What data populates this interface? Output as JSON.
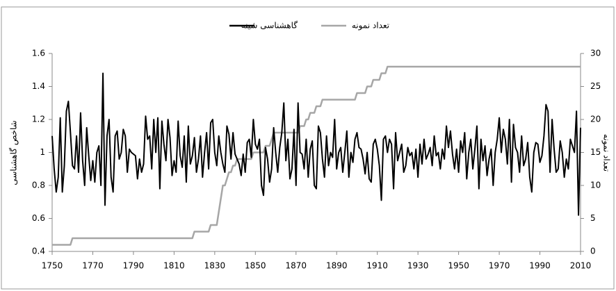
{
  "chart_data": {
    "type": "line",
    "legend_position": "top",
    "y_label": "شاخص گاهشناسی",
    "y2_label": "تعداد نمونه",
    "xlim": [
      1750,
      2010
    ],
    "xticks": [
      1750,
      1770,
      1790,
      1810,
      1830,
      1850,
      1870,
      1890,
      1910,
      1930,
      1950,
      1970,
      1990,
      2010
    ],
    "ylim": [
      0.4,
      1.6
    ],
    "yticks": [
      0.4,
      0.6,
      0.8,
      1,
      1.2,
      1.4,
      1.6
    ],
    "y2lim": [
      0,
      30
    ],
    "y2ticks": [
      0,
      5,
      10,
      15,
      20,
      25,
      30
    ],
    "x": [
      1750,
      1751,
      1752,
      1753,
      1754,
      1755,
      1756,
      1757,
      1758,
      1759,
      1760,
      1761,
      1762,
      1763,
      1764,
      1765,
      1766,
      1767,
      1768,
      1769,
      1770,
      1771,
      1772,
      1773,
      1774,
      1775,
      1776,
      1777,
      1778,
      1779,
      1780,
      1781,
      1782,
      1783,
      1784,
      1785,
      1786,
      1787,
      1788,
      1789,
      1790,
      1791,
      1792,
      1793,
      1794,
      1795,
      1796,
      1797,
      1798,
      1799,
      1800,
      1801,
      1802,
      1803,
      1804,
      1805,
      1806,
      1807,
      1808,
      1809,
      1810,
      1811,
      1812,
      1813,
      1814,
      1815,
      1816,
      1817,
      1818,
      1819,
      1820,
      1821,
      1822,
      1823,
      1824,
      1825,
      1826,
      1827,
      1828,
      1829,
      1830,
      1831,
      1832,
      1833,
      1834,
      1835,
      1836,
      1837,
      1838,
      1839,
      1840,
      1841,
      1842,
      1843,
      1844,
      1845,
      1846,
      1847,
      1848,
      1849,
      1850,
      1851,
      1852,
      1853,
      1854,
      1855,
      1856,
      1857,
      1858,
      1859,
      1860,
      1861,
      1862,
      1863,
      1864,
      1865,
      1866,
      1867,
      1868,
      1869,
      1870,
      1871,
      1872,
      1873,
      1874,
      1875,
      1876,
      1877,
      1878,
      1879,
      1880,
      1881,
      1882,
      1883,
      1884,
      1885,
      1886,
      1887,
      1888,
      1889,
      1890,
      1891,
      1892,
      1893,
      1894,
      1895,
      1896,
      1897,
      1898,
      1899,
      1900,
      1901,
      1902,
      1903,
      1904,
      1905,
      1906,
      1907,
      1908,
      1909,
      1910,
      1911,
      1912,
      1913,
      1914,
      1915,
      1916,
      1917,
      1918,
      1919,
      1920,
      1921,
      1922,
      1923,
      1924,
      1925,
      1926,
      1927,
      1928,
      1929,
      1930,
      1931,
      1932,
      1933,
      1934,
      1935,
      1936,
      1937,
      1938,
      1939,
      1940,
      1941,
      1942,
      1943,
      1944,
      1945,
      1946,
      1947,
      1948,
      1949,
      1950,
      1951,
      1952,
      1953,
      1954,
      1955,
      1956,
      1957,
      1958,
      1959,
      1960,
      1961,
      1962,
      1963,
      1964,
      1965,
      1966,
      1967,
      1968,
      1969,
      1970,
      1971,
      1972,
      1973,
      1974,
      1975,
      1976,
      1977,
      1978,
      1979,
      1980,
      1981,
      1982,
      1983,
      1984,
      1985,
      1986,
      1987,
      1988,
      1989,
      1990,
      1991,
      1992,
      1993,
      1994,
      1995,
      1996,
      1997,
      1998,
      1999,
      2000,
      2001,
      2002,
      2003,
      2004,
      2005,
      2006,
      2007,
      2008,
      2009,
      2010
    ],
    "series": [
      {
        "name": "گاهشناسی شینه",
        "color": "#000000",
        "axis": "y",
        "values": [
          1.1,
          0.9,
          0.76,
          0.85,
          1.21,
          0.76,
          0.92,
          1.25,
          1.31,
          1.12,
          0.92,
          0.9,
          1.1,
          0.88,
          1.24,
          0.95,
          0.8,
          1.15,
          0.98,
          0.83,
          0.95,
          0.82,
          1.0,
          1.04,
          0.8,
          1.48,
          0.68,
          1.1,
          1.2,
          0.85,
          0.76,
          1.1,
          1.13,
          0.96,
          1.0,
          1.14,
          1.1,
          0.88,
          1.02,
          1.0,
          0.99,
          0.98,
          0.84,
          0.96,
          0.88,
          0.93,
          1.22,
          1.08,
          1.1,
          0.9,
          1.2,
          1.0,
          1.21,
          0.78,
          1.19,
          1.05,
          0.95,
          1.2,
          1.09,
          0.86,
          0.95,
          0.88,
          1.19,
          0.98,
          0.91,
          1.1,
          0.82,
          1.16,
          0.93,
          0.98,
          1.09,
          0.88,
          0.96,
          1.1,
          0.85,
          1.0,
          1.12,
          0.9,
          1.18,
          1.2,
          1.0,
          0.92,
          1.1,
          1.0,
          0.93,
          0.88,
          1.16,
          1.11,
          0.96,
          1.12,
          0.99,
          0.96,
          0.93,
          0.86,
          0.99,
          0.88,
          1.06,
          1.08,
          0.97,
          1.2,
          1.05,
          1.02,
          1.08,
          0.8,
          0.74,
          1.03,
          0.96,
          0.82,
          0.9,
          1.15,
          1.0,
          0.88,
          1.03,
          1.12,
          1.3,
          0.95,
          1.08,
          0.84,
          0.9,
          1.14,
          0.8,
          1.3,
          1.0,
          0.99,
          0.9,
          1.08,
          0.85,
          1.02,
          1.07,
          0.8,
          0.78,
          1.16,
          1.12,
          0.96,
          0.85,
          1.1,
          0.92,
          1.0,
          0.97,
          1.2,
          0.9,
          1.0,
          1.03,
          0.88,
          1.0,
          1.13,
          0.85,
          1.0,
          0.94,
          1.08,
          1.12,
          1.03,
          1.02,
          0.96,
          0.87,
          1.0,
          0.84,
          0.82,
          1.05,
          1.08,
          1.02,
          0.92,
          0.71,
          1.08,
          1.1,
          1.0,
          1.08,
          1.05,
          0.78,
          1.12,
          0.95,
          1.0,
          1.05,
          0.88,
          0.92,
          1.03,
          0.98,
          1.0,
          0.9,
          1.02,
          0.85,
          1.05,
          0.93,
          1.08,
          0.96,
          0.99,
          1.03,
          0.92,
          1.1,
          0.98,
          1.0,
          0.9,
          1.02,
          0.96,
          1.16,
          1.03,
          1.13,
          0.99,
          0.9,
          1.02,
          0.88,
          1.07,
          1.0,
          1.12,
          0.84,
          1.0,
          1.08,
          0.9,
          1.02,
          1.16,
          0.78,
          1.08,
          0.95,
          1.04,
          0.86,
          0.96,
          1.02,
          0.8,
          1.0,
          1.08,
          1.21,
          1.0,
          1.14,
          1.08,
          0.93,
          1.2,
          0.82,
          1.17,
          1.03,
          1.0,
          0.88,
          1.1,
          0.92,
          0.96,
          1.06,
          0.85,
          0.76,
          1.0,
          1.06,
          1.05,
          0.94,
          0.98,
          1.1,
          1.29,
          1.25,
          0.88,
          1.2,
          1.02,
          0.88,
          0.9,
          1.07,
          1.0,
          0.85,
          0.96,
          0.9,
          1.08,
          1.04,
          1.0,
          1.25,
          0.62,
          1.15
        ]
      },
      {
        "name": "تعداد نمونه",
        "color": "#a6a6a6",
        "axis": "y2",
        "values": [
          1,
          1,
          1,
          1,
          1,
          1,
          1,
          1,
          1,
          1,
          2,
          2,
          2,
          2,
          2,
          2,
          2,
          2,
          2,
          2,
          2,
          2,
          2,
          2,
          2,
          2,
          2,
          2,
          2,
          2,
          2,
          2,
          2,
          2,
          2,
          2,
          2,
          2,
          2,
          2,
          2,
          2,
          2,
          2,
          2,
          2,
          2,
          2,
          2,
          2,
          2,
          2,
          2,
          2,
          2,
          2,
          2,
          2,
          2,
          2,
          2,
          2,
          2,
          2,
          2,
          2,
          2,
          2,
          2,
          2,
          3,
          3,
          3,
          3,
          3,
          3,
          3,
          3,
          4,
          4,
          4,
          4,
          6,
          8,
          10,
          10,
          11,
          12,
          12,
          13,
          13,
          14,
          14,
          14,
          14,
          14,
          14,
          14,
          14,
          15,
          15,
          15,
          15,
          15,
          15,
          16,
          16,
          16,
          17,
          18,
          18,
          18,
          18,
          18,
          18,
          18,
          18,
          18,
          18,
          18,
          18,
          18,
          19,
          19,
          19,
          20,
          20,
          21,
          21,
          21,
          22,
          22,
          22,
          23,
          23,
          23,
          23,
          23,
          23,
          23,
          23,
          23,
          23,
          23,
          23,
          23,
          23,
          23,
          23,
          23,
          24,
          24,
          24,
          24,
          24,
          25,
          25,
          25,
          26,
          26,
          26,
          26,
          27,
          27,
          27,
          28,
          28,
          28,
          28,
          28,
          28,
          28,
          28,
          28,
          28,
          28,
          28,
          28,
          28,
          28,
          28,
          28,
          28,
          28,
          28,
          28,
          28,
          28,
          28,
          28,
          28,
          28,
          28,
          28,
          28,
          28,
          28,
          28,
          28,
          28,
          28,
          28,
          28,
          28,
          28,
          28,
          28,
          28,
          28,
          28,
          28,
          28,
          28,
          28,
          28,
          28,
          28,
          28,
          28,
          28,
          28,
          28,
          28,
          28,
          28,
          28,
          28,
          28,
          28,
          28,
          28,
          28,
          28,
          28,
          28,
          28,
          28,
          28,
          28,
          28,
          28,
          28,
          28,
          28,
          28,
          28,
          28,
          28,
          28,
          28,
          28,
          28,
          28,
          28,
          28,
          28,
          28,
          28,
          28,
          28,
          28
        ]
      }
    ]
  }
}
